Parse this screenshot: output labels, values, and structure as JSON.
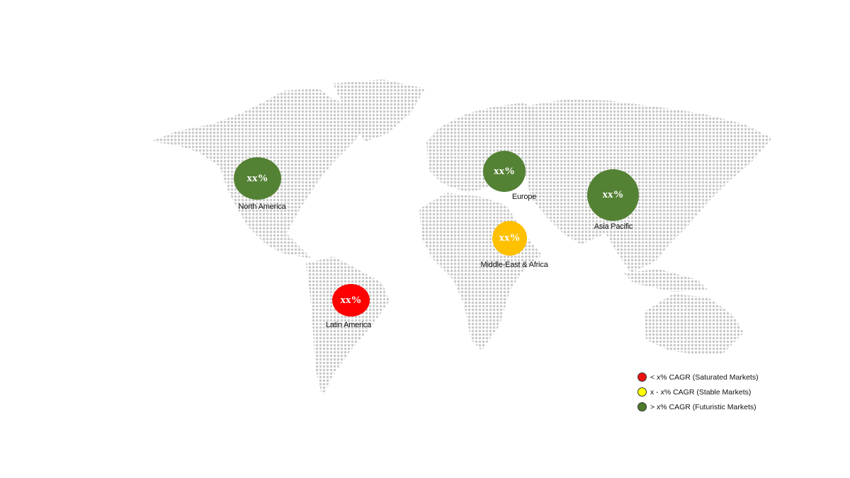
{
  "regions": [
    {
      "name": "North America",
      "value_label": "xx%",
      "category": "futuristic"
    },
    {
      "name": "Europe",
      "value_label": "xx%",
      "category": "futuristic"
    },
    {
      "name": "Asia Pacific",
      "value_label": "xx%",
      "category": "futuristic"
    },
    {
      "name": "Middle-East & Africa",
      "value_label": "xx%",
      "category": "stable"
    },
    {
      "name": "Latin America",
      "value_label": "xx%",
      "category": "saturated"
    }
  ],
  "legend": [
    {
      "label": "< x% CAGR (Saturated Markets)",
      "color": "#ee1111"
    },
    {
      "label": "x - x% CAGR (Stable Markets)",
      "color": "#ffff00"
    },
    {
      "label": "> x% CAGR (Futuristic Markets)",
      "color": "#4e7a2c"
    }
  ],
  "colors": {
    "futuristic": "#548235",
    "stable": "#ffc000",
    "saturated": "#ff0000",
    "land_dots": "#c8c8c8"
  }
}
